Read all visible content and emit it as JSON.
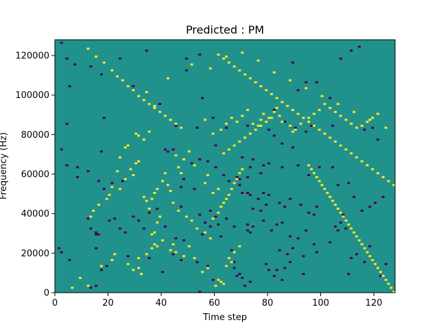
{
  "chart_data": {
    "type": "heatmap",
    "title": "Predicted : PM",
    "xlabel": "Time step",
    "ylabel": "Frequency (Hz)",
    "xlim": [
      0,
      128
    ],
    "ylim": [
      0,
      128000
    ],
    "x_ticks": [
      0,
      20,
      40,
      60,
      80,
      100,
      120
    ],
    "y_ticks": [
      0,
      20000,
      40000,
      60000,
      80000,
      100000,
      120000
    ],
    "x_tick_labels": [
      "0",
      "20",
      "40",
      "60",
      "80",
      "100",
      "120"
    ],
    "y_tick_labels": [
      "0",
      "20000",
      "40000",
      "60000",
      "80000",
      "100000",
      "120000"
    ],
    "grid": false,
    "n_time_steps": 128,
    "n_frequency_bins": 128,
    "bin_height_hz": 1000,
    "colormap": {
      "low": {
        "value": -1,
        "color": "#440154"
      },
      "mid": {
        "value": 0,
        "color": "#21918c"
      },
      "high": {
        "value": 1,
        "color": "#fde725"
      }
    },
    "background_value": 0,
    "cells_low": [
      [
        2,
        126
      ],
      [
        4,
        118
      ],
      [
        7,
        115
      ],
      [
        13,
        114
      ],
      [
        17,
        110
      ],
      [
        24,
        118
      ],
      [
        34,
        122
      ],
      [
        49,
        118
      ],
      [
        49,
        112
      ],
      [
        54,
        120
      ],
      [
        89,
        116
      ],
      [
        94,
        106
      ],
      [
        111,
        122
      ],
      [
        114,
        124
      ],
      [
        107,
        118
      ],
      [
        5,
        104
      ],
      [
        29,
        104
      ],
      [
        39,
        95
      ],
      [
        55,
        98
      ],
      [
        59,
        88
      ],
      [
        91,
        102
      ],
      [
        103,
        98
      ],
      [
        98,
        106
      ],
      [
        4,
        85
      ],
      [
        18,
        88
      ],
      [
        45,
        84
      ],
      [
        53,
        83
      ],
      [
        64,
        83
      ],
      [
        72,
        84
      ],
      [
        82,
        92
      ],
      [
        86,
        86
      ],
      [
        90,
        83
      ],
      [
        94,
        81
      ],
      [
        96,
        84
      ],
      [
        104,
        84
      ],
      [
        116,
        82
      ],
      [
        119,
        83
      ],
      [
        121,
        77
      ],
      [
        89,
        73
      ],
      [
        85,
        75
      ],
      [
        82,
        79
      ],
      [
        80,
        82
      ],
      [
        41,
        72
      ],
      [
        54,
        67
      ],
      [
        60,
        74
      ],
      [
        44,
        72
      ],
      [
        42,
        71
      ],
      [
        2,
        72
      ],
      [
        17,
        71
      ],
      [
        51,
        65
      ],
      [
        57,
        66
      ],
      [
        70,
        68
      ],
      [
        73,
        63
      ],
      [
        77,
        60
      ],
      [
        74,
        67
      ],
      [
        4,
        64
      ],
      [
        8,
        63
      ],
      [
        60,
        63
      ],
      [
        63,
        59
      ],
      [
        68,
        58
      ],
      [
        69,
        57
      ],
      [
        72,
        58
      ],
      [
        78,
        64
      ],
      [
        80,
        65
      ],
      [
        85,
        63
      ],
      [
        91,
        64
      ],
      [
        95,
        59
      ],
      [
        99,
        63
      ],
      [
        104,
        63
      ],
      [
        65,
        56
      ],
      [
        69,
        54
      ],
      [
        70,
        50
      ],
      [
        72,
        50
      ],
      [
        73,
        49
      ],
      [
        74,
        42
      ],
      [
        76,
        47
      ],
      [
        77,
        41
      ],
      [
        78,
        50
      ],
      [
        79,
        44
      ],
      [
        80,
        49
      ],
      [
        84,
        45
      ],
      [
        86,
        43
      ],
      [
        88,
        47
      ],
      [
        92,
        44
      ],
      [
        95,
        40
      ],
      [
        97,
        39
      ],
      [
        98,
        43
      ],
      [
        21,
        55
      ],
      [
        25,
        56
      ],
      [
        16,
        56
      ],
      [
        12,
        61
      ],
      [
        8,
        58
      ],
      [
        18,
        52
      ],
      [
        52,
        52
      ],
      [
        48,
        57
      ],
      [
        47,
        53
      ],
      [
        106,
        54
      ],
      [
        110,
        55
      ],
      [
        112,
        48
      ],
      [
        115,
        41
      ],
      [
        118,
        43
      ],
      [
        120,
        45
      ],
      [
        123,
        48
      ],
      [
        105,
        33
      ],
      [
        106,
        31
      ],
      [
        107,
        35
      ],
      [
        108,
        39
      ],
      [
        35,
        40
      ],
      [
        38,
        42
      ],
      [
        47,
        43
      ],
      [
        54,
        39
      ],
      [
        58,
        41
      ],
      [
        60,
        38
      ],
      [
        64,
        37
      ],
      [
        67,
        33
      ],
      [
        72,
        34
      ],
      [
        72,
        31
      ],
      [
        73,
        30
      ],
      [
        74,
        33
      ],
      [
        78,
        36
      ],
      [
        81,
        31
      ],
      [
        83,
        34
      ],
      [
        85,
        35
      ],
      [
        88,
        28
      ],
      [
        91,
        27
      ],
      [
        94,
        31
      ],
      [
        97,
        24
      ],
      [
        12,
        37
      ],
      [
        13,
        32
      ],
      [
        15,
        30
      ],
      [
        15,
        29
      ],
      [
        16,
        29
      ],
      [
        20,
        36
      ],
      [
        22,
        37
      ],
      [
        24,
        32
      ],
      [
        26,
        30
      ],
      [
        29,
        38
      ],
      [
        31,
        36
      ],
      [
        33,
        32
      ],
      [
        41,
        33
      ],
      [
        45,
        27
      ],
      [
        48,
        26
      ],
      [
        55,
        29
      ],
      [
        56,
        35
      ],
      [
        58,
        33
      ],
      [
        61,
        34
      ],
      [
        62,
        28
      ],
      [
        1,
        22
      ],
      [
        2,
        20
      ],
      [
        5,
        16
      ],
      [
        15,
        22
      ],
      [
        17,
        11
      ],
      [
        19,
        13
      ],
      [
        15,
        3
      ],
      [
        13,
        2
      ],
      [
        27,
        18
      ],
      [
        35,
        17
      ],
      [
        40,
        10
      ],
      [
        44,
        19
      ],
      [
        47,
        16
      ],
      [
        53,
        15
      ],
      [
        57,
        13
      ],
      [
        59,
        6
      ],
      [
        66,
        21
      ],
      [
        67,
        15
      ],
      [
        67,
        12
      ],
      [
        69,
        9
      ],
      [
        70,
        7
      ],
      [
        68,
        8
      ],
      [
        71,
        3
      ],
      [
        73,
        5
      ],
      [
        79,
        14
      ],
      [
        80,
        11
      ],
      [
        84,
        21
      ],
      [
        87,
        19
      ],
      [
        88,
        15
      ],
      [
        89,
        22
      ],
      [
        93,
        18
      ],
      [
        98,
        20
      ],
      [
        103,
        25
      ],
      [
        109,
        32
      ],
      [
        111,
        17
      ],
      [
        113,
        19
      ],
      [
        116,
        15
      ],
      [
        118,
        23
      ],
      [
        110,
        9
      ],
      [
        122,
        8
      ],
      [
        124,
        14
      ],
      [
        82,
        8
      ],
      [
        83,
        11
      ],
      [
        86,
        12
      ],
      [
        85,
        6
      ],
      [
        54,
        0
      ],
      [
        93,
        9
      ]
    ],
    "cells_high": [
      [
        6,
        2
      ],
      [
        9,
        7
      ],
      [
        12,
        3
      ],
      [
        17,
        13
      ],
      [
        21,
        16
      ],
      [
        22,
        19
      ],
      [
        27,
        14
      ],
      [
        29,
        11
      ],
      [
        31,
        17
      ],
      [
        31,
        12
      ],
      [
        32,
        9
      ],
      [
        34,
        19
      ],
      [
        36,
        22
      ],
      [
        37,
        24
      ],
      [
        38,
        23
      ],
      [
        36,
        29
      ],
      [
        37,
        30
      ],
      [
        38,
        35
      ],
      [
        39,
        38
      ],
      [
        40,
        26
      ],
      [
        43,
        21
      ],
      [
        44,
        24
      ],
      [
        45,
        20
      ],
      [
        48,
        18
      ],
      [
        50,
        23
      ],
      [
        52,
        17
      ],
      [
        55,
        10
      ],
      [
        57,
        12
      ],
      [
        60,
        3
      ],
      [
        61,
        6
      ],
      [
        62,
        5
      ],
      [
        63,
        4
      ],
      [
        64,
        13
      ],
      [
        65,
        17
      ],
      [
        66,
        15
      ],
      [
        67,
        20
      ],
      [
        69,
        23
      ],
      [
        14,
        41
      ],
      [
        13,
        38
      ],
      [
        16,
        44
      ],
      [
        19,
        47
      ],
      [
        20,
        49
      ],
      [
        24,
        52
      ],
      [
        26,
        57
      ],
      [
        28,
        62
      ],
      [
        29,
        59
      ],
      [
        30,
        65
      ],
      [
        31,
        66
      ],
      [
        33,
        48
      ],
      [
        34,
        46
      ],
      [
        35,
        42
      ],
      [
        36,
        47
      ],
      [
        37,
        50
      ],
      [
        38,
        52
      ],
      [
        40,
        56
      ],
      [
        41,
        60
      ],
      [
        42,
        54
      ],
      [
        43,
        51
      ],
      [
        44,
        45
      ],
      [
        46,
        41
      ],
      [
        49,
        38
      ],
      [
        51,
        36
      ],
      [
        53,
        32
      ],
      [
        56,
        30
      ],
      [
        58,
        27
      ],
      [
        59,
        37
      ],
      [
        61,
        40
      ],
      [
        62,
        43
      ],
      [
        63,
        45
      ],
      [
        64,
        47
      ],
      [
        65,
        49
      ],
      [
        66,
        52
      ],
      [
        67,
        55
      ],
      [
        68,
        57
      ],
      [
        69,
        60
      ],
      [
        70,
        62
      ],
      [
        21,
        53
      ],
      [
        23,
        61
      ],
      [
        24,
        68
      ],
      [
        26,
        73
      ],
      [
        27,
        74
      ],
      [
        30,
        80
      ],
      [
        31,
        79
      ],
      [
        33,
        77
      ],
      [
        35,
        81
      ],
      [
        45,
        69
      ],
      [
        46,
        63
      ],
      [
        47,
        60
      ],
      [
        48,
        67
      ],
      [
        50,
        71
      ],
      [
        52,
        64
      ],
      [
        56,
        55
      ],
      [
        57,
        59
      ],
      [
        59,
        50
      ],
      [
        61,
        52
      ],
      [
        56,
        87
      ],
      [
        59,
        80
      ],
      [
        62,
        82
      ],
      [
        64,
        85
      ],
      [
        66,
        88
      ],
      [
        68,
        86
      ],
      [
        70,
        89
      ],
      [
        72,
        92
      ],
      [
        74,
        85
      ],
      [
        76,
        84
      ],
      [
        77,
        87
      ],
      [
        78,
        90
      ],
      [
        80,
        88
      ],
      [
        82,
        91
      ],
      [
        83,
        93
      ],
      [
        84,
        89
      ],
      [
        85,
        86
      ],
      [
        88,
        84
      ],
      [
        89,
        81
      ],
      [
        90,
        82
      ],
      [
        92,
        85
      ],
      [
        95,
        88
      ],
      [
        97,
        90
      ],
      [
        99,
        92
      ],
      [
        101,
        95
      ],
      [
        103,
        93
      ],
      [
        105,
        91
      ],
      [
        107,
        89
      ],
      [
        109,
        87
      ],
      [
        111,
        85
      ],
      [
        113,
        83
      ],
      [
        115,
        84
      ],
      [
        117,
        86
      ],
      [
        119,
        88
      ],
      [
        121,
        90
      ],
      [
        12,
        123
      ],
      [
        15,
        119
      ],
      [
        18,
        116
      ],
      [
        21,
        112
      ],
      [
        23,
        109
      ],
      [
        25,
        107
      ],
      [
        27,
        104
      ],
      [
        29,
        102
      ],
      [
        31,
        99
      ],
      [
        33,
        97
      ],
      [
        35,
        95
      ],
      [
        37,
        93
      ],
      [
        39,
        91
      ],
      [
        41,
        89
      ],
      [
        43,
        87
      ],
      [
        45,
        85
      ],
      [
        47,
        83
      ],
      [
        63,
        70
      ],
      [
        65,
        72
      ],
      [
        67,
        74
      ],
      [
        69,
        76
      ],
      [
        71,
        78
      ],
      [
        73,
        80
      ],
      [
        75,
        82
      ],
      [
        77,
        84
      ],
      [
        79,
        86
      ],
      [
        81,
        88
      ],
      [
        61,
        120
      ],
      [
        63,
        118
      ],
      [
        65,
        116
      ],
      [
        67,
        114
      ],
      [
        69,
        112
      ],
      [
        71,
        110
      ],
      [
        73,
        108
      ],
      [
        75,
        106
      ],
      [
        77,
        104
      ],
      [
        79,
        102
      ],
      [
        81,
        100
      ],
      [
        83,
        98
      ],
      [
        85,
        96
      ],
      [
        87,
        94
      ],
      [
        89,
        92
      ],
      [
        91,
        90
      ],
      [
        93,
        88
      ],
      [
        95,
        86
      ],
      [
        97,
        84
      ],
      [
        99,
        82
      ],
      [
        101,
        80
      ],
      [
        103,
        78
      ],
      [
        105,
        76
      ],
      [
        107,
        74
      ],
      [
        109,
        72
      ],
      [
        111,
        70
      ],
      [
        113,
        68
      ],
      [
        115,
        66
      ],
      [
        117,
        64
      ],
      [
        119,
        62
      ],
      [
        121,
        60
      ],
      [
        123,
        58
      ],
      [
        125,
        56
      ],
      [
        127,
        54
      ],
      [
        34,
        101
      ],
      [
        37,
        94
      ],
      [
        42,
        108
      ],
      [
        51,
        115
      ],
      [
        58,
        113
      ],
      [
        64,
        119
      ],
      [
        70,
        121
      ],
      [
        76,
        117
      ],
      [
        82,
        111
      ],
      [
        88,
        107
      ],
      [
        94,
        103
      ],
      [
        100,
        99
      ],
      [
        106,
        95
      ],
      [
        112,
        91
      ],
      [
        118,
        87
      ],
      [
        124,
        83
      ],
      [
        95,
        64
      ],
      [
        96,
        62
      ],
      [
        97,
        60
      ],
      [
        98,
        58
      ],
      [
        99,
        56
      ],
      [
        100,
        54
      ],
      [
        101,
        52
      ],
      [
        102,
        50
      ],
      [
        103,
        48
      ],
      [
        104,
        46
      ],
      [
        105,
        44
      ],
      [
        106,
        42
      ],
      [
        107,
        40
      ],
      [
        108,
        38
      ],
      [
        109,
        36
      ],
      [
        110,
        34
      ],
      [
        111,
        32
      ],
      [
        112,
        30
      ],
      [
        113,
        28
      ],
      [
        114,
        26
      ],
      [
        115,
        24
      ],
      [
        116,
        22
      ],
      [
        117,
        20
      ],
      [
        118,
        18
      ],
      [
        119,
        16
      ],
      [
        120,
        14
      ],
      [
        121,
        12
      ],
      [
        122,
        10
      ],
      [
        123,
        8
      ],
      [
        124,
        6
      ],
      [
        125,
        4
      ],
      [
        126,
        2
      ],
      [
        127,
        0
      ]
    ]
  }
}
